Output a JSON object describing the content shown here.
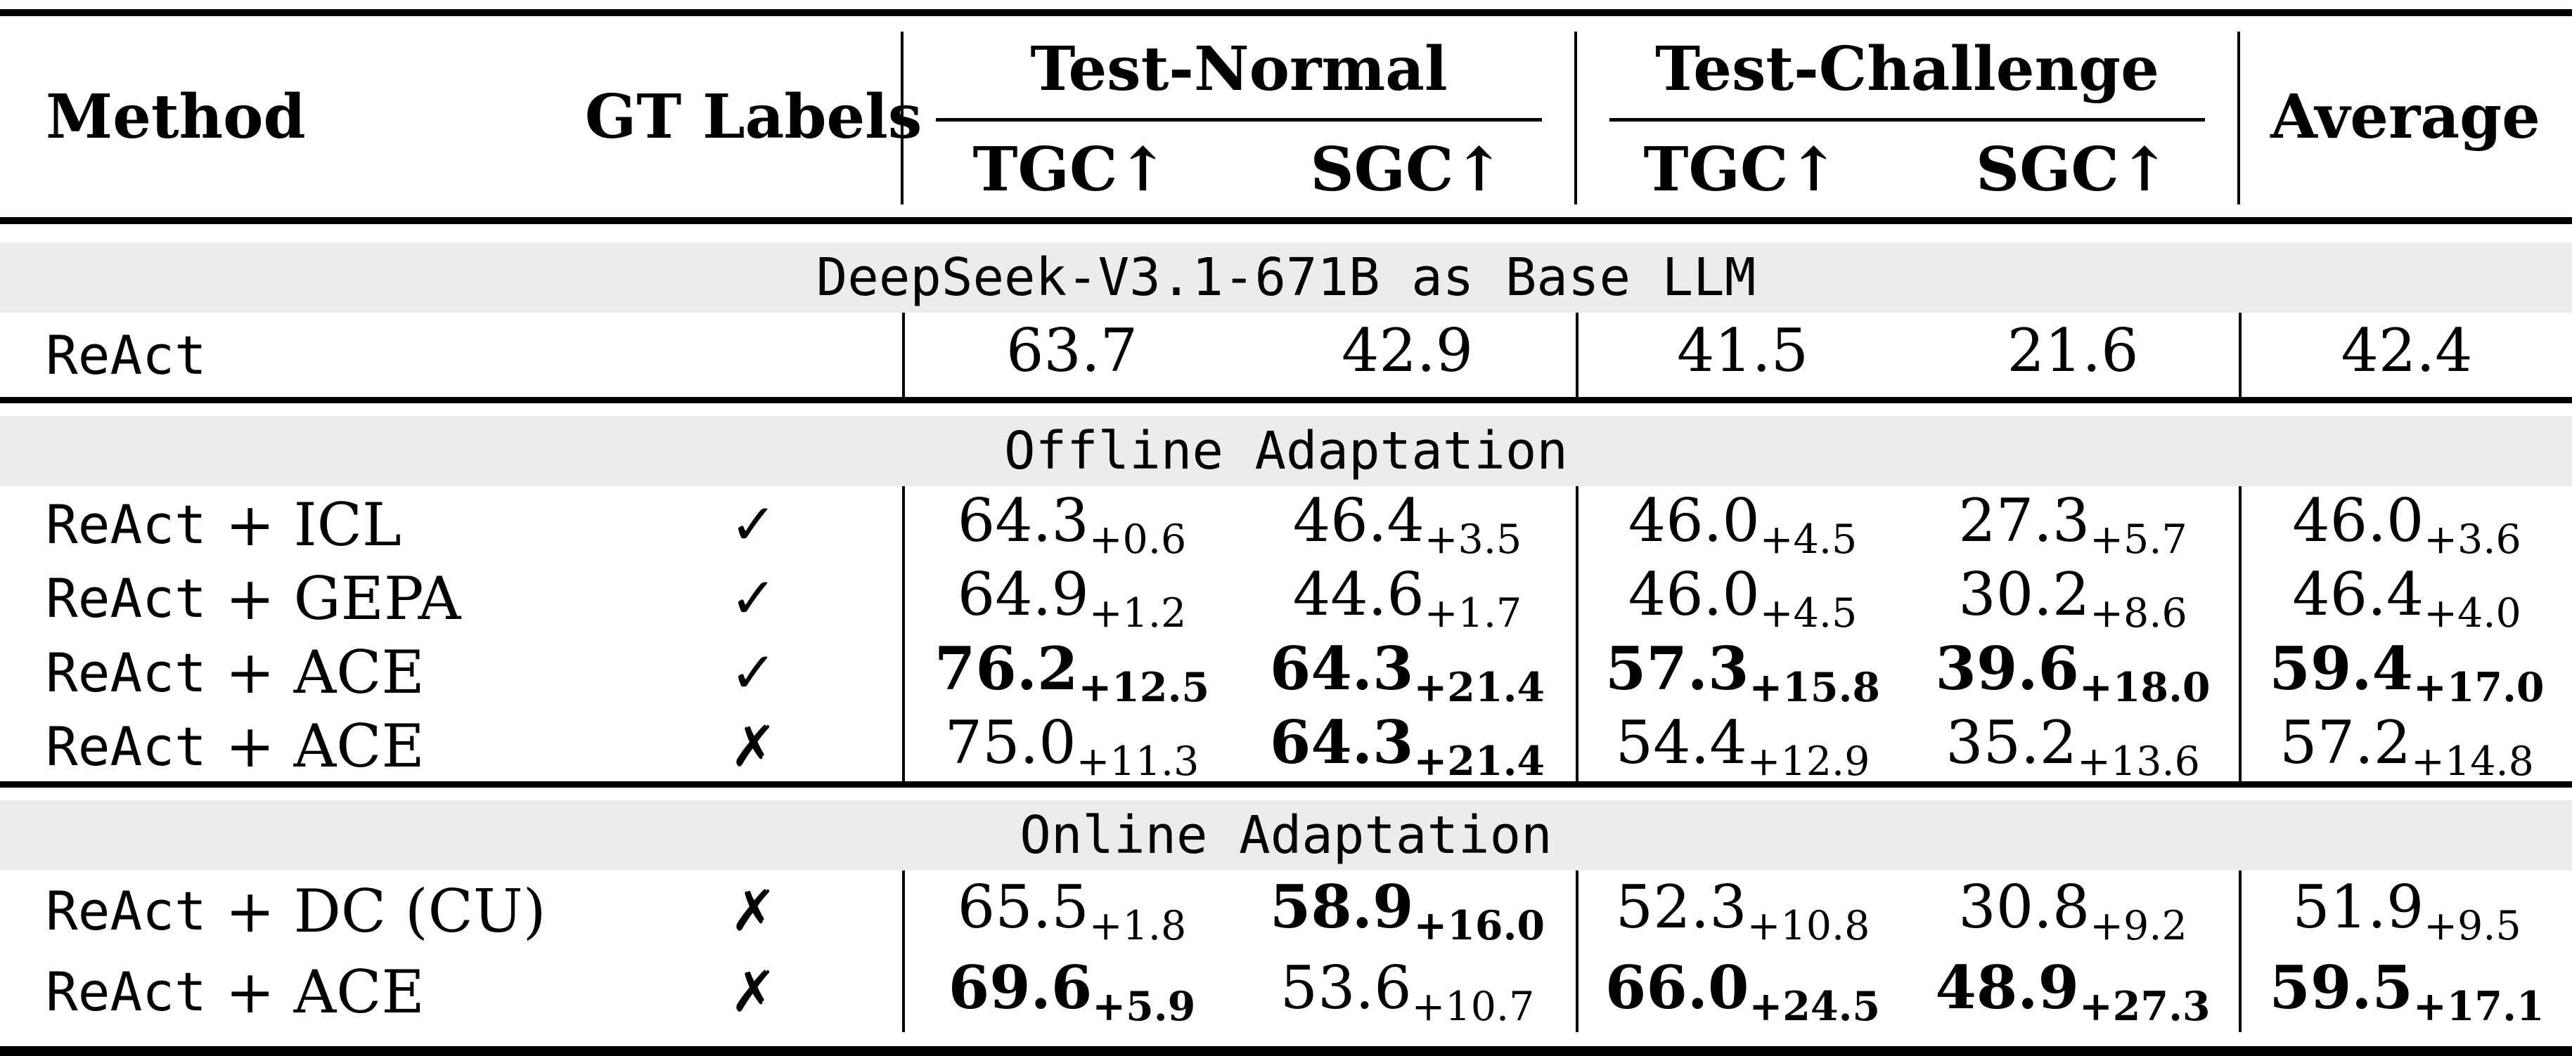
{
  "colors": {
    "band_bg": "#ececec",
    "rule": "#000000",
    "text": "#000000"
  },
  "header": {
    "method": "Method",
    "gt_labels": "GT Labels",
    "group_normal": "Test-Normal",
    "group_challenge": "Test-Challenge",
    "sub_tn_tgc": "TGC↑",
    "sub_tn_sgc": "SGC↑",
    "sub_tc_tgc": "TGC↑",
    "sub_tc_sgc": "SGC↑",
    "average": "Average"
  },
  "sections": [
    {
      "band": "DeepSeek-V3.1-671B as Base LLM",
      "rows": [
        {
          "method_mono": "ReAct",
          "method_suffix": "",
          "gt": "",
          "cells": [
            {
              "v": "63.7",
              "sub": "",
              "bold": false
            },
            {
              "v": "42.9",
              "sub": "",
              "bold": false
            },
            {
              "v": "41.5",
              "sub": "",
              "bold": false
            },
            {
              "v": "21.6",
              "sub": "",
              "bold": false
            },
            {
              "v": "42.4",
              "sub": "",
              "bold": false
            }
          ]
        }
      ]
    },
    {
      "band": "Offline Adaptation",
      "rows": [
        {
          "method_mono": "ReAct",
          "method_suffix": " + ICL",
          "gt": "✓",
          "cells": [
            {
              "v": "64.3",
              "sub": "+0.6",
              "bold": false
            },
            {
              "v": "46.4",
              "sub": "+3.5",
              "bold": false
            },
            {
              "v": "46.0",
              "sub": "+4.5",
              "bold": false
            },
            {
              "v": "27.3",
              "sub": "+5.7",
              "bold": false
            },
            {
              "v": "46.0",
              "sub": "+3.6",
              "bold": false
            }
          ]
        },
        {
          "method_mono": "ReAct",
          "method_suffix": " + GEPA",
          "gt": "✓",
          "cells": [
            {
              "v": "64.9",
              "sub": "+1.2",
              "bold": false
            },
            {
              "v": "44.6",
              "sub": "+1.7",
              "bold": false
            },
            {
              "v": "46.0",
              "sub": "+4.5",
              "bold": false
            },
            {
              "v": "30.2",
              "sub": "+8.6",
              "bold": false
            },
            {
              "v": "46.4",
              "sub": "+4.0",
              "bold": false
            }
          ]
        },
        {
          "method_mono": "ReAct",
          "method_suffix": " + ACE",
          "gt": "✓",
          "cells": [
            {
              "v": "76.2",
              "sub": "+12.5",
              "bold": true
            },
            {
              "v": "64.3",
              "sub": "+21.4",
              "bold": true
            },
            {
              "v": "57.3",
              "sub": "+15.8",
              "bold": true
            },
            {
              "v": "39.6",
              "sub": "+18.0",
              "bold": true
            },
            {
              "v": "59.4",
              "sub": "+17.0",
              "bold": true
            }
          ]
        },
        {
          "method_mono": "ReAct",
          "method_suffix": " + ACE",
          "gt": "✗",
          "cells": [
            {
              "v": "75.0",
              "sub": "+11.3",
              "bold": false
            },
            {
              "v": "64.3",
              "sub": "+21.4",
              "bold": true
            },
            {
              "v": "54.4",
              "sub": "+12.9",
              "bold": false
            },
            {
              "v": "35.2",
              "sub": "+13.6",
              "bold": false
            },
            {
              "v": "57.2",
              "sub": "+14.8",
              "bold": false
            }
          ]
        }
      ]
    },
    {
      "band": "Online Adaptation",
      "rows": [
        {
          "method_mono": "ReAct",
          "method_suffix": " + DC (CU)",
          "gt": "✗",
          "cells": [
            {
              "v": "65.5",
              "sub": "+1.8",
              "bold": false
            },
            {
              "v": "58.9",
              "sub": "+16.0",
              "bold": true
            },
            {
              "v": "52.3",
              "sub": "+10.8",
              "bold": false
            },
            {
              "v": "30.8",
              "sub": "+9.2",
              "bold": false
            },
            {
              "v": "51.9",
              "sub": "+9.5",
              "bold": false
            }
          ]
        },
        {
          "method_mono": "ReAct",
          "method_suffix": " + ACE",
          "gt": "✗",
          "cells": [
            {
              "v": "69.6",
              "sub": "+5.9",
              "bold": true
            },
            {
              "v": "53.6",
              "sub": "+10.7",
              "bold": false
            },
            {
              "v": "66.0",
              "sub": "+24.5",
              "bold": true
            },
            {
              "v": "48.9",
              "sub": "+27.3",
              "bold": true
            },
            {
              "v": "59.5",
              "sub": "+17.1",
              "bold": true
            }
          ]
        }
      ]
    }
  ]
}
